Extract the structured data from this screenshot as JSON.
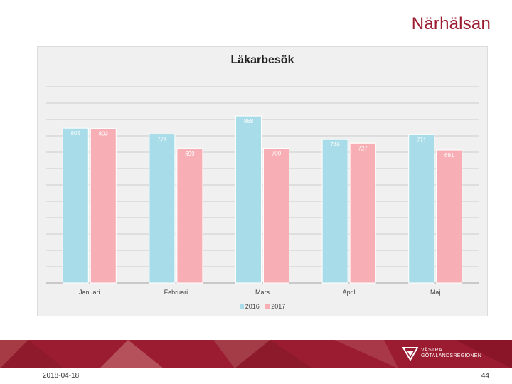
{
  "header": {
    "brand": "Närhälsan"
  },
  "chart_data": {
    "type": "bar",
    "title": "Läkarbesök",
    "categories": [
      "Januari",
      "Februari",
      "Mars",
      "April",
      "Maj"
    ],
    "series": [
      {
        "name": "2016",
        "values": [
          805,
          774,
          868,
          746,
          771
        ],
        "color": "#a8dce8"
      },
      {
        "name": "2017",
        "values": [
          803,
          699,
          700,
          727,
          691
        ],
        "color": "#f7aeb4"
      }
    ],
    "data_labels": true,
    "grid": true,
    "legend_position": "bottom"
  },
  "legend": {
    "series_2016": "2016",
    "series_2017": "2017"
  },
  "footer": {
    "date": "2018-04-18",
    "page_number": "44",
    "logo_line1": "VÄSTRA",
    "logo_line2": "GÖTALANDSREGIONEN",
    "band_color": "#9b1b30"
  }
}
